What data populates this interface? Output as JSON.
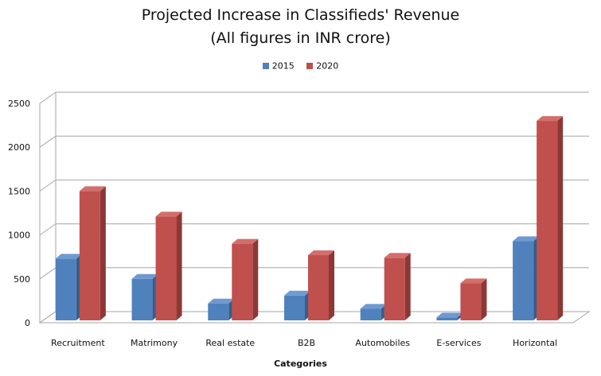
{
  "chart_data": {
    "type": "bar",
    "title_line1": "Projected Increase in Classifieds' Revenue",
    "title_line2": "(All figures in INR crore)",
    "xlabel": "Categories",
    "ylabel": "",
    "ylim": [
      0,
      2500
    ],
    "yticks": [
      0,
      500,
      1000,
      1500,
      2000,
      2500
    ],
    "categories": [
      "Recruitment",
      "Matrimony",
      "Real estate",
      "B2B",
      "Automobiles",
      "E-services",
      "Horizontal"
    ],
    "series": [
      {
        "name": "2015",
        "color": "#4f81bd",
        "side": "#385d8a",
        "top": "#6f9ad0",
        "values": [
          730,
          500,
          220,
          310,
          160,
          60,
          930
        ]
      },
      {
        "name": "2020",
        "color": "#c0504d",
        "side": "#8c3836",
        "top": "#d46e6b",
        "values": [
          1500,
          1210,
          900,
          770,
          740,
          450,
          2300
        ]
      }
    ],
    "legend_position": "top",
    "grid": true
  }
}
